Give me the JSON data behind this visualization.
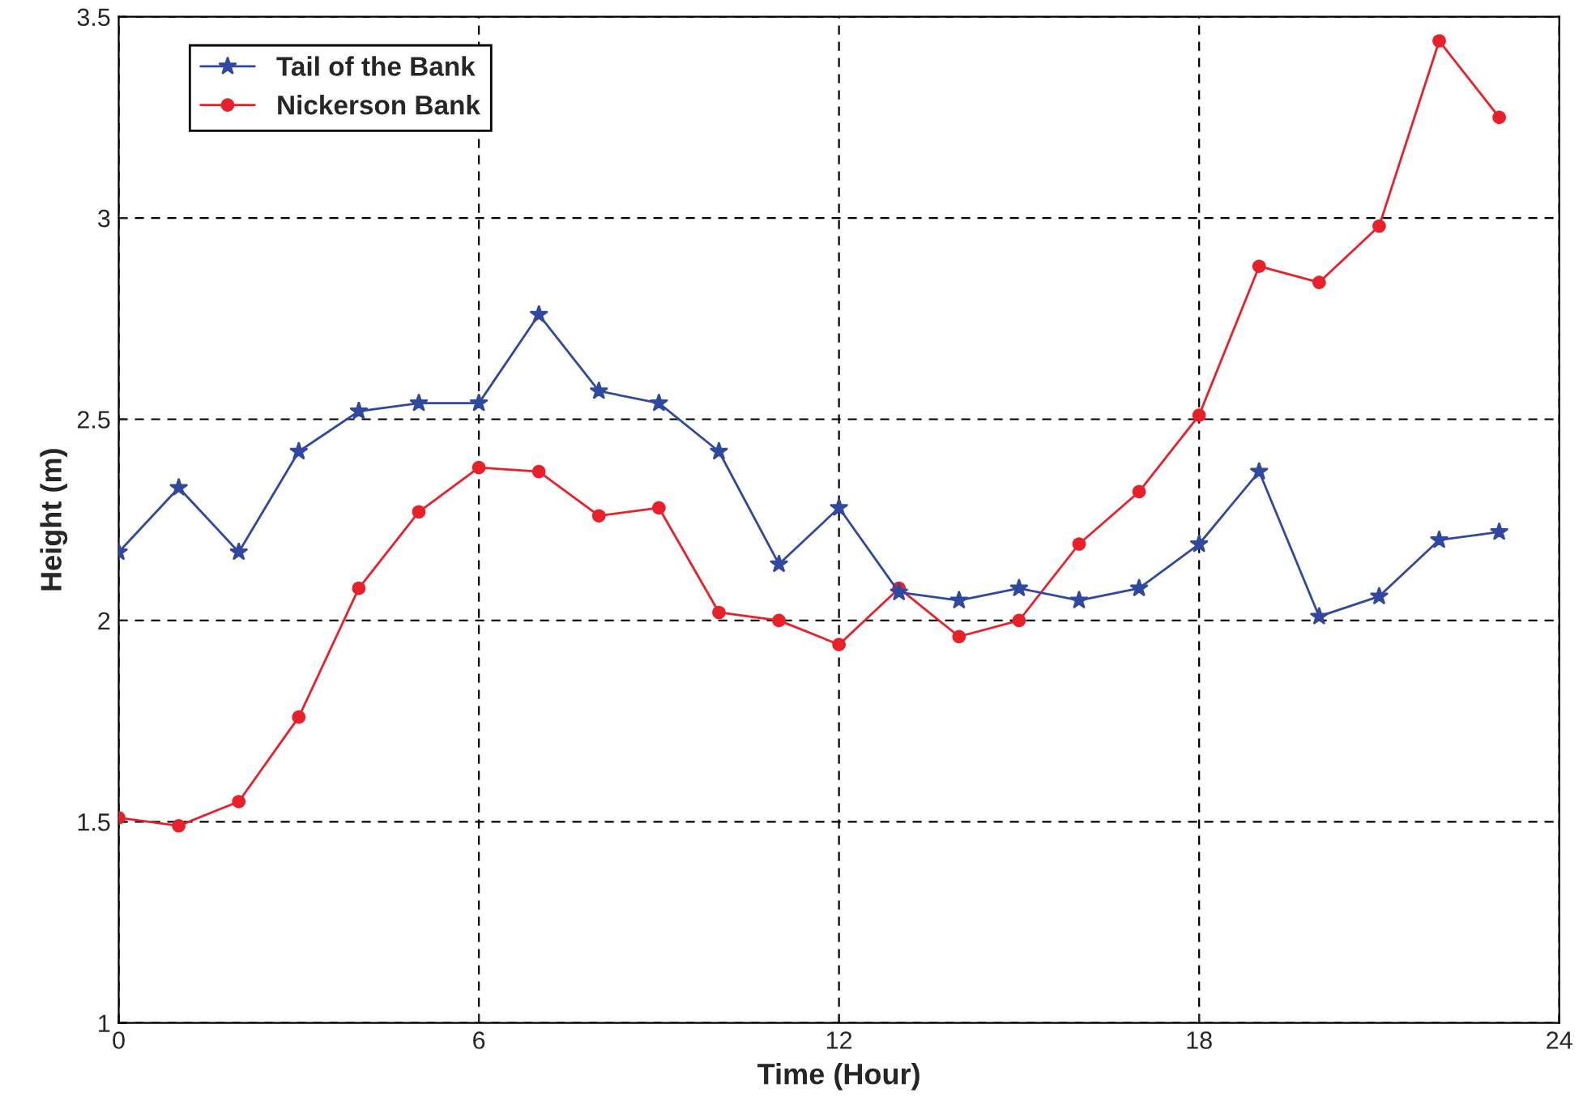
{
  "chart_data": {
    "type": "line",
    "xlabel": "Time (Hour)",
    "ylabel": "Height (m)",
    "x": [
      0,
      1,
      2,
      3,
      4,
      5,
      6,
      7,
      8,
      9,
      10,
      11,
      12,
      13,
      14,
      15,
      16,
      17,
      18,
      19,
      20,
      21,
      22,
      23
    ],
    "series": [
      {
        "name": "Tail of the Bank",
        "color": "#3048a0",
        "marker": "star",
        "values": [
          2.17,
          2.33,
          2.17,
          2.42,
          2.52,
          2.54,
          2.54,
          2.76,
          2.57,
          2.54,
          2.42,
          2.14,
          2.28,
          2.07,
          2.05,
          2.08,
          2.05,
          2.08,
          2.19,
          2.37,
          2.01,
          2.06,
          2.2,
          2.22
        ]
      },
      {
        "name": "Nickerson Bank",
        "color": "#e8202a",
        "marker": "circle",
        "values": [
          1.51,
          1.49,
          1.55,
          1.76,
          2.08,
          2.27,
          2.38,
          2.37,
          2.26,
          2.28,
          2.02,
          2.0,
          1.94,
          2.08,
          1.96,
          2.0,
          2.19,
          2.32,
          2.51,
          2.88,
          2.84,
          2.98,
          3.44,
          3.25
        ]
      }
    ],
    "xlim": [
      0,
      24
    ],
    "xticks": [
      0,
      6,
      12,
      18,
      24
    ],
    "ylim": [
      1,
      3.5
    ],
    "yticks": [
      1,
      1.5,
      2,
      2.5,
      3,
      3.5
    ],
    "grid": true,
    "legend": "top left",
    "line_style": "solid"
  }
}
